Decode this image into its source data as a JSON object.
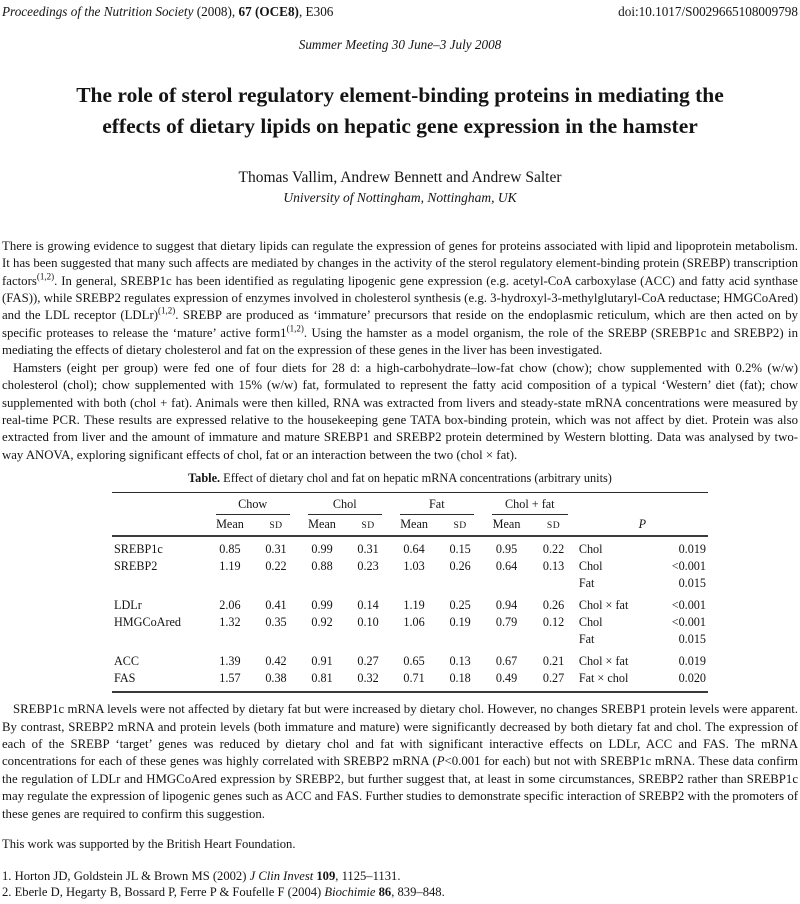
{
  "header": {
    "journal": "Proceedings of the Nutrition Society",
    "pub": " (2008), ",
    "issue": "67 (OCE8)",
    "rest": ", E306",
    "doi": "doi:10.1017/S0029665108009798",
    "meeting": "Summer Meeting 30 June–3 July 2008"
  },
  "title_lines": [
    "The role of sterol regulatory element-binding proteins in mediating the",
    "effects of dietary lipids on hepatic gene expression in the hamster"
  ],
  "authors": "Thomas Vallim, Andrew Bennett and Andrew Salter",
  "affiliation": "University of Nottingham, Nottingham, UK",
  "abstract": {
    "p1": {
      "s1": "There is growing evidence to suggest that dietary lipids can regulate the expression of genes for proteins associated with lipid and lipoprotein metabolism. It has been suggested that many such affects are mediated by changes in the activity of the sterol regulatory element-binding protein (SREBP) transcription factors",
      "sup1": "(1,2)",
      "s2": ". In general, SREBP1c has been identified as regulating lipogenic gene expression (e.g. acetyl-CoA carboxylase (ACC) and fatty acid synthase (FAS)), while SREBP2 regulates expression of enzymes involved in cholesterol synthesis (e.g. 3-hydroxyl-3-methylglutaryl-CoA reductase; HMGCoAred) and the LDL receptor (LDLr)",
      "sup2": "(1,2)",
      "s3": ". SREBP are produced as ‘immature’ precursors that reside on the endoplasmic reticulum, which are then acted on by specific proteases to release the ‘mature’ active form1",
      "sup3": "(1,2)",
      "s4": ". Using the hamster as a model organism, the role of the SREBP (SREBP1c and SREBP2) in mediating the effects of dietary cholesterol and fat on the expression of these genes in the liver has been investigated."
    },
    "p2": "Hamsters (eight per group) were fed one of four diets for 28 d: a high-carbohydrate–low-fat chow (chow); chow supplemented with 0.2% (w/w) cholesterol (chol); chow supplemented with 15% (w/w) fat, formulated to represent the fatty acid composition of a typical ‘Western’ diet (fat); chow supplemented with both (chol + fat). Animals were then killed, RNA was extracted from livers and steady-state mRNA concentrations were measured by real-time PCR. These results are expressed relative to the housekeeping gene TATA box-binding protein, which was not affect by diet. Protein was also extracted from liver and the amount of immature and mature SREBP1 and SREBP2 protein determined by Western blotting. Data was analysed by two-way ANOVA, exploring significant effects of chol, fat or an interaction between the two (chol × fat).",
    "p3": {
      "s1": "SREBP1c mRNA levels were not affected by dietary fat but were increased by dietary chol. However, no changes SREBP1 protein levels were apparent. By contrast, SREBP2 mRNA and protein levels (both immature and mature) were significantly decreased by both dietary fat and chol. The expression of each of the SREBP ‘target’ genes was reduced by dietary chol and fat with significant interactive effects on LDLr, ACC and FAS. The mRNA concentrations for each of these genes was highly correlated with SREBP2 mRNA (",
      "italic1": "P",
      "s2": "<0.001 for each) but not with SREBP1c mRNA. These data confirm the regulation of LDLr and HMGCoAred expression by SREBP2, but further suggest that, at least in some circumstances, SREBP2 rather than SREBP1c may regulate the expression of lipogenic genes such as ACC and FAS. Further studies to demonstrate specific interaction of SREBP2 with the promoters of these genes are required to confirm this suggestion."
    }
  },
  "table": {
    "caption_label": "Table.",
    "caption_text": " Effect of dietary chol and fat on hepatic mRNA concentrations (arbitrary units)",
    "groups": [
      "Chow",
      "Chol",
      "Fat",
      "Chol + fat"
    ],
    "mean_label": "Mean",
    "sd_label": "SD",
    "p_header": "P",
    "rows": [
      {
        "gene": "SREBP1c",
        "values": [
          "0.85",
          "0.31",
          "0.99",
          "0.31",
          "0.64",
          "0.15",
          "0.95",
          "0.22"
        ],
        "effects": [
          {
            "label": "Chol",
            "p": "0.019"
          }
        ]
      },
      {
        "gene": "SREBP2",
        "values": [
          "1.19",
          "0.22",
          "0.88",
          "0.23",
          "1.03",
          "0.26",
          "0.64",
          "0.13"
        ],
        "effects": [
          {
            "label": "Chol",
            "p": "<0.001"
          },
          {
            "label": "Fat",
            "p": "0.015"
          }
        ]
      },
      {
        "gene": "LDLr",
        "values": [
          "2.06",
          "0.41",
          "0.99",
          "0.14",
          "1.19",
          "0.25",
          "0.94",
          "0.26"
        ],
        "effects": [
          {
            "label": "Chol × fat",
            "p": "<0.001"
          }
        ]
      },
      {
        "gene": "HMGCoAred",
        "values": [
          "1.32",
          "0.35",
          "0.92",
          "0.10",
          "1.06",
          "0.19",
          "0.79",
          "0.12"
        ],
        "effects": [
          {
            "label": "Chol",
            "p": "<0.001"
          },
          {
            "label": "Fat",
            "p": "0.015"
          }
        ]
      },
      {
        "gene": "ACC",
        "values": [
          "1.39",
          "0.42",
          "0.91",
          "0.27",
          "0.65",
          "0.13",
          "0.67",
          "0.21"
        ],
        "effects": [
          {
            "label": "Chol × fat",
            "p": "0.019"
          }
        ]
      },
      {
        "gene": "FAS",
        "values": [
          "1.57",
          "0.38",
          "0.81",
          "0.32",
          "0.71",
          "0.18",
          "0.49",
          "0.27"
        ],
        "effects": [
          {
            "label": "Fat × chol",
            "p": "0.020"
          }
        ]
      }
    ]
  },
  "acknowledgement": "This work was supported by the British Heart Foundation.",
  "references": [
    {
      "num": "1.",
      "authors": " Horton JD, Goldstein JL & Brown MS (2002) ",
      "journal": "J Clin Invest",
      "volume": " 109",
      "pages": ", 1125–1131."
    },
    {
      "num": "2.",
      "authors": " Eberle D, Hegarty B, Bossard P, Ferre P & Foufelle F (2004) ",
      "journal": "Biochimie",
      "volume": " 86",
      "pages": ", 839–848."
    }
  ]
}
